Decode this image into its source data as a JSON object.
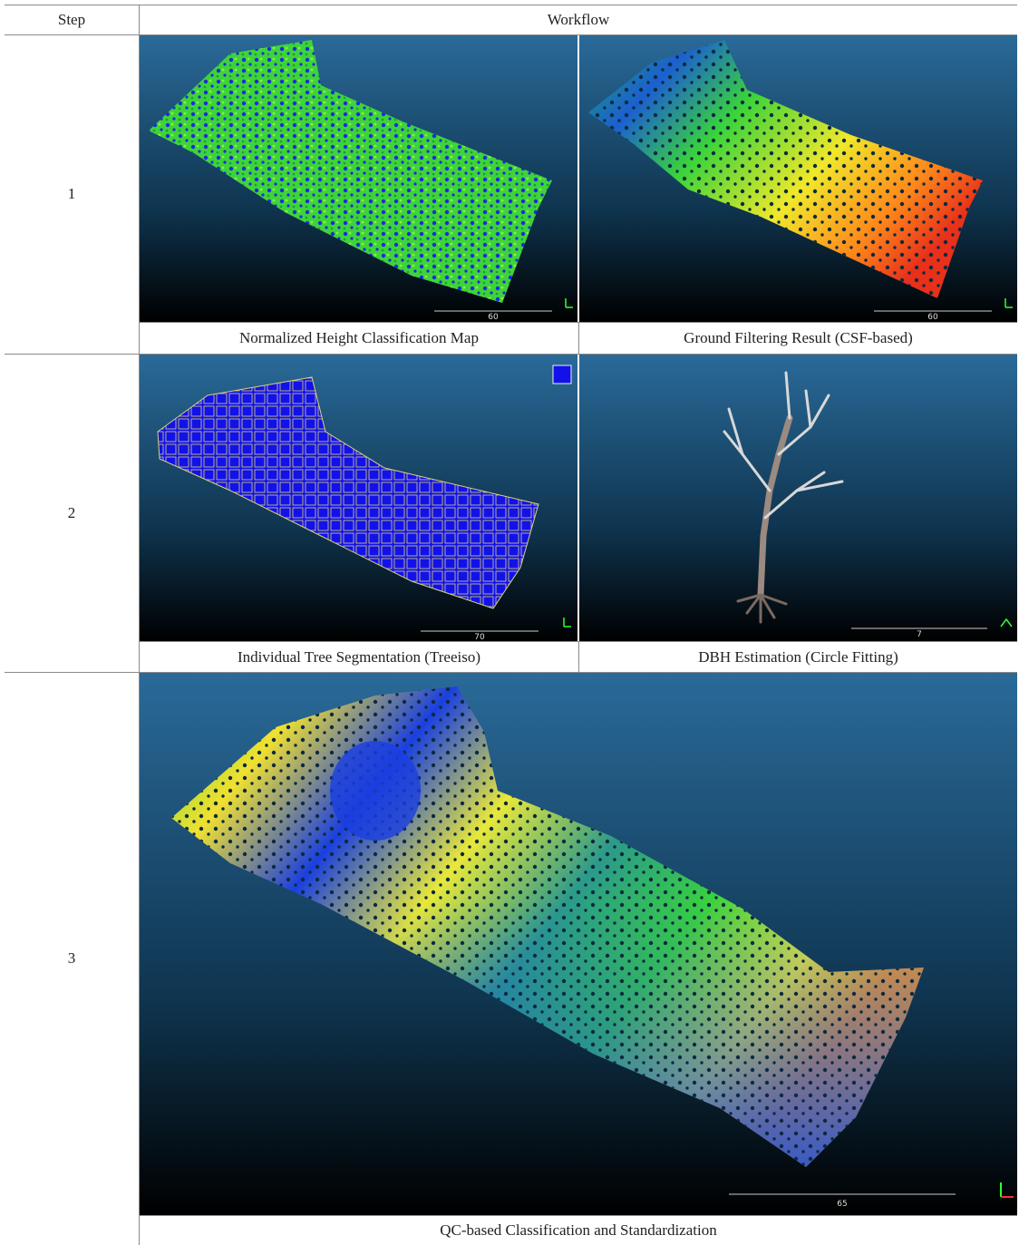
{
  "header": {
    "step": "Step",
    "workflow": "Workflow"
  },
  "rows": [
    {
      "step": "1",
      "panels": [
        {
          "caption": "Normalized Height Classification Map",
          "scale_label": "60"
        },
        {
          "caption": "Ground Filtering Result (CSF-based)",
          "scale_label": "60"
        }
      ]
    },
    {
      "step": "2",
      "panels": [
        {
          "caption": "Individual Tree Segmentation (Treeiso)",
          "scale_label": "70"
        },
        {
          "caption": "DBH Estimation (Circle Fitting)",
          "scale_label": "7"
        }
      ]
    },
    {
      "step": "3",
      "panels": [
        {
          "caption": "QC-based Classification and Standardization",
          "scale_label": "65"
        }
      ]
    }
  ]
}
